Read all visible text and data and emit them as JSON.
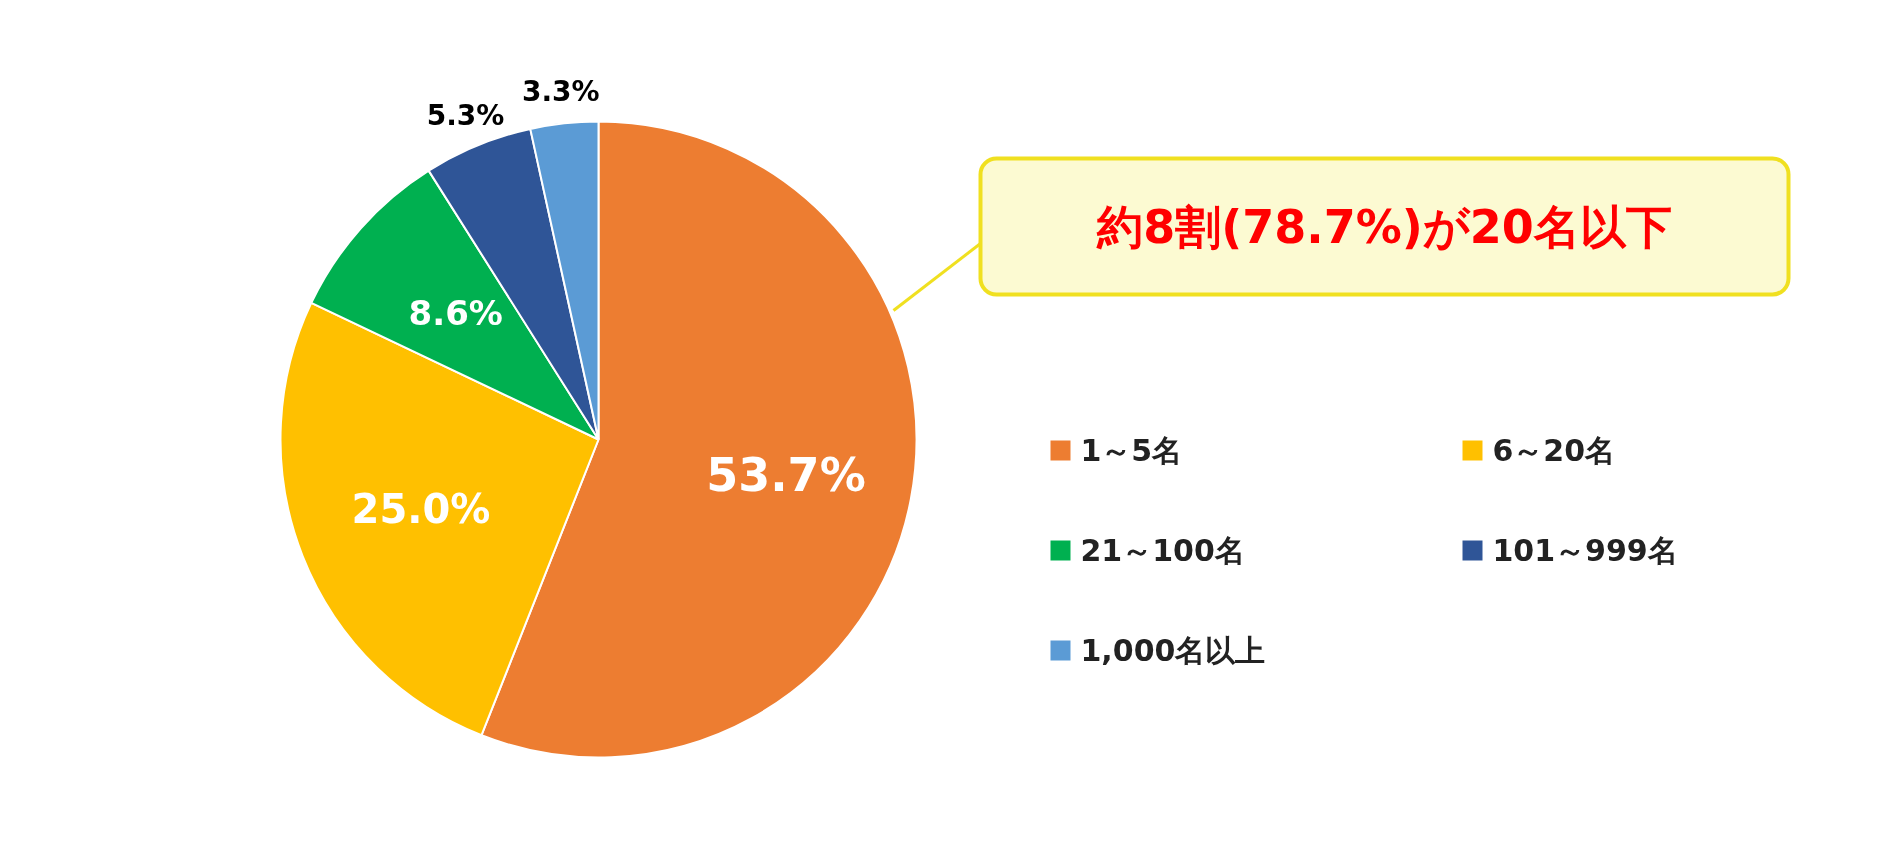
{
  "chart_data": {
    "type": "pie",
    "categories": [
      "1～5名",
      "6～20名",
      "21～100名",
      "101～999名",
      "1,000名以上"
    ],
    "values": [
      53.7,
      25.0,
      8.6,
      5.3,
      3.3
    ],
    "colors": [
      "#ed7d31",
      "#ffc000",
      "#00b050",
      "#2f5597",
      "#5b9bd5"
    ],
    "value_labels": [
      "53.7%",
      "25.0%",
      "8.6%",
      "5.3%",
      "3.3%"
    ],
    "legend": "right",
    "annotations": [
      "約8割(78.7%)が20名以下"
    ]
  }
}
